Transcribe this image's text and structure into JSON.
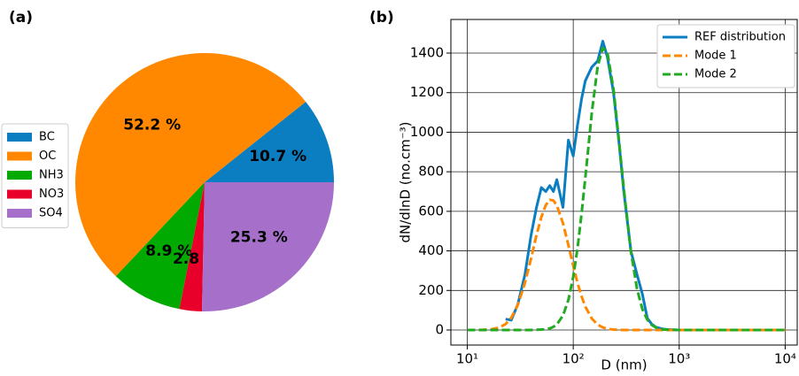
{
  "chart_data": [
    {
      "type": "pie",
      "title": "(a)",
      "categories": [
        "BC",
        "OC",
        "NH3",
        "NO3",
        "SO4"
      ],
      "values": [
        10.7,
        52.2,
        8.9,
        2.8,
        25.3
      ],
      "value_labels": [
        "10.7 %",
        "52.2 %",
        "8.9 %",
        "2.8 %",
        "25.3 %"
      ],
      "colors": [
        "#0b7dc1",
        "#ff8800",
        "#00aa00",
        "#e8002a",
        "#a56fca"
      ],
      "legend": "center left"
    },
    {
      "type": "line",
      "title": "(b)",
      "xlabel": "D (nm)",
      "ylabel": "dN/dlnD (no.cm⁻³)",
      "xscale": "log",
      "grid": true,
      "legend": "upper right",
      "xlim": [
        7,
        13000
      ],
      "ylim": [
        -76,
        1570
      ],
      "xticks": [
        {
          "value": 10,
          "label": "10¹"
        },
        {
          "value": 100,
          "label": "10²"
        },
        {
          "value": 1000,
          "label": "10³"
        },
        {
          "value": 10000,
          "label": "10⁴"
        }
      ],
      "yticks": [
        0,
        200,
        400,
        600,
        800,
        1000,
        1200,
        1400
      ],
      "x": [
        10,
        12,
        14,
        17,
        20,
        23,
        26,
        30,
        35,
        40,
        45,
        50,
        55,
        60,
        65,
        70,
        80,
        90,
        100,
        110,
        120,
        130,
        150,
        170,
        190,
        210,
        240,
        270,
        300,
        350,
        400,
        450,
        500,
        550,
        600,
        700,
        800,
        1000,
        1300,
        2000,
        3000,
        5000,
        10000
      ],
      "series": [
        {
          "name": "REF distribution",
          "color": "#0b7dc1",
          "linestyle": "solid",
          "values": [
            null,
            null,
            null,
            null,
            null,
            55,
            50,
            130,
            280,
            480,
            620,
            720,
            700,
            730,
            700,
            760,
            620,
            960,
            880,
            1040,
            1170,
            1260,
            1330,
            1360,
            1460,
            1380,
            1200,
            950,
            700,
            400,
            280,
            180,
            60,
            30,
            15,
            5,
            2,
            0,
            null,
            null,
            null,
            null,
            null
          ]
        },
        {
          "name": "Mode 1",
          "color": "#ff8800",
          "linestyle": "dashed",
          "values": [
            0,
            0,
            1,
            4,
            12,
            30,
            62,
            127,
            238,
            362,
            480,
            571,
            631,
            658,
            655,
            630,
            540,
            429,
            324,
            236,
            169,
            118,
            57,
            27,
            13,
            6,
            2,
            1,
            0,
            0,
            0,
            0,
            0,
            0,
            0,
            0,
            0,
            0,
            0,
            0,
            0,
            0,
            0
          ]
        },
        {
          "name": "Mode 2",
          "color": "#22aa22",
          "linestyle": "dashed",
          "values": [
            0,
            0,
            0,
            0,
            0,
            0,
            0,
            0,
            0,
            0,
            1,
            2,
            4,
            8,
            16,
            28,
            73,
            152,
            269,
            417,
            592,
            770,
            1103,
            1333,
            1426,
            1402,
            1218,
            959,
            715,
            397,
            207,
            104,
            52,
            26,
            13,
            3,
            1,
            0,
            0,
            0,
            0,
            0,
            0
          ]
        }
      ]
    }
  ]
}
